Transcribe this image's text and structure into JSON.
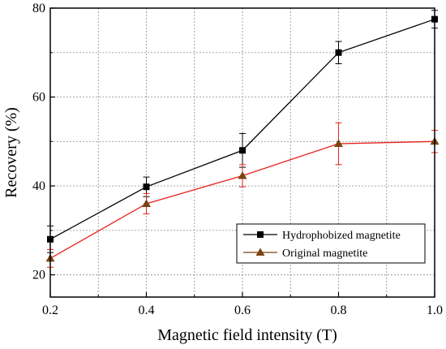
{
  "chart_data": {
    "type": "line",
    "xlabel": "Magnetic field intensity (T)",
    "ylabel": "Recovery (%)",
    "xlim": [
      0.2,
      1.0
    ],
    "ylim": [
      15,
      80
    ],
    "x_ticks": [
      "0.2",
      "0.4",
      "0.6",
      "0.8",
      "1.0"
    ],
    "x_tick_values": [
      0.2,
      0.4,
      0.6,
      0.8,
      1.0
    ],
    "y_ticks": [
      "20",
      "40",
      "60",
      "80"
    ],
    "y_tick_values": [
      20,
      40,
      60,
      80
    ],
    "x_minor_values": [
      0.3,
      0.5,
      0.7,
      0.9
    ],
    "y_minor_values": [
      30,
      50,
      70
    ],
    "grid": true,
    "legend_position": "bottom-right",
    "x": [
      0.2,
      0.4,
      0.6,
      0.8,
      1.0
    ],
    "series": [
      {
        "name": "Hydrophobized magnetite",
        "values": [
          28.0,
          39.8,
          48.0,
          70.0,
          77.5
        ],
        "errors": [
          3.0,
          2.2,
          3.8,
          2.5,
          2.0
        ],
        "color": "#000000",
        "marker": "square"
      },
      {
        "name": "Original magnetite",
        "values": [
          23.7,
          36.0,
          42.3,
          49.5,
          50.0
        ],
        "errors": [
          2.0,
          2.3,
          2.5,
          4.7,
          2.5
        ],
        "color": "#e8221b",
        "marker_color": "#7a4410",
        "marker": "triangle"
      }
    ]
  }
}
